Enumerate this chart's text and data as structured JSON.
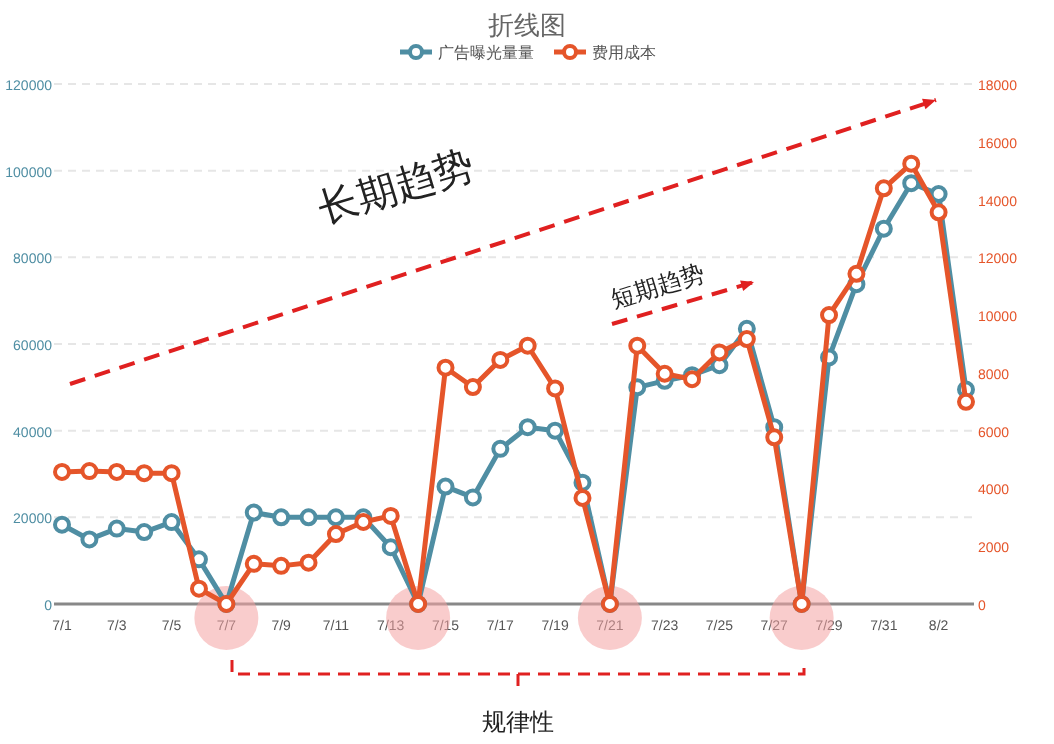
{
  "chart_data": {
    "type": "line",
    "title": "折线图",
    "categories": [
      "7/1",
      null,
      "7/3",
      null,
      "7/5",
      null,
      "7/7",
      null,
      "7/9",
      null,
      "7/11",
      null,
      "7/13",
      null,
      "7/15",
      null,
      "7/17",
      null,
      "7/19",
      null,
      "7/21",
      null,
      "7/23",
      null,
      "7/25",
      null,
      "7/27",
      null,
      "7/29",
      null,
      "7/31",
      null,
      "8/2",
      null
    ],
    "series": [
      {
        "name": "广告曝光量量",
        "color": "#4f8ea3",
        "values": [
          18300,
          14900,
          17400,
          16600,
          18900,
          10300,
          0,
          21100,
          20000,
          20000,
          20000,
          20000,
          13100,
          0,
          27100,
          24600,
          35800,
          40800,
          40000,
          28000,
          0,
          50000,
          51500,
          52800,
          55100,
          63500,
          40800,
          0,
          56900,
          73800,
          86600,
          97100,
          94600,
          49500
        ]
      },
      {
        "name": "费用成本",
        "color": "#e5552a",
        "axis": "y2",
        "values": [
          4570,
          4600,
          4570,
          4530,
          4530,
          530,
          0,
          1390,
          1320,
          1430,
          2420,
          2840,
          3050,
          0,
          8180,
          7510,
          8450,
          8940,
          7460,
          3670,
          0,
          8940,
          7970,
          7780,
          8710,
          9170,
          5770,
          0,
          10000,
          11430,
          14390,
          15240,
          13560,
          7000
        ]
      }
    ],
    "ylim": [
      0,
      120000
    ],
    "yticks": [
      0,
      20000,
      40000,
      60000,
      80000,
      100000,
      120000
    ],
    "y2lim": [
      0,
      18000
    ],
    "y2ticks": [
      0,
      2000,
      4000,
      6000,
      8000,
      10000,
      12000,
      14000,
      16000,
      18000
    ],
    "grid": "y",
    "legend": "top",
    "marker": "circle",
    "line_style": "solid",
    "annotations": [
      "长期趋势",
      "短期趋势",
      "规律性"
    ]
  }
}
